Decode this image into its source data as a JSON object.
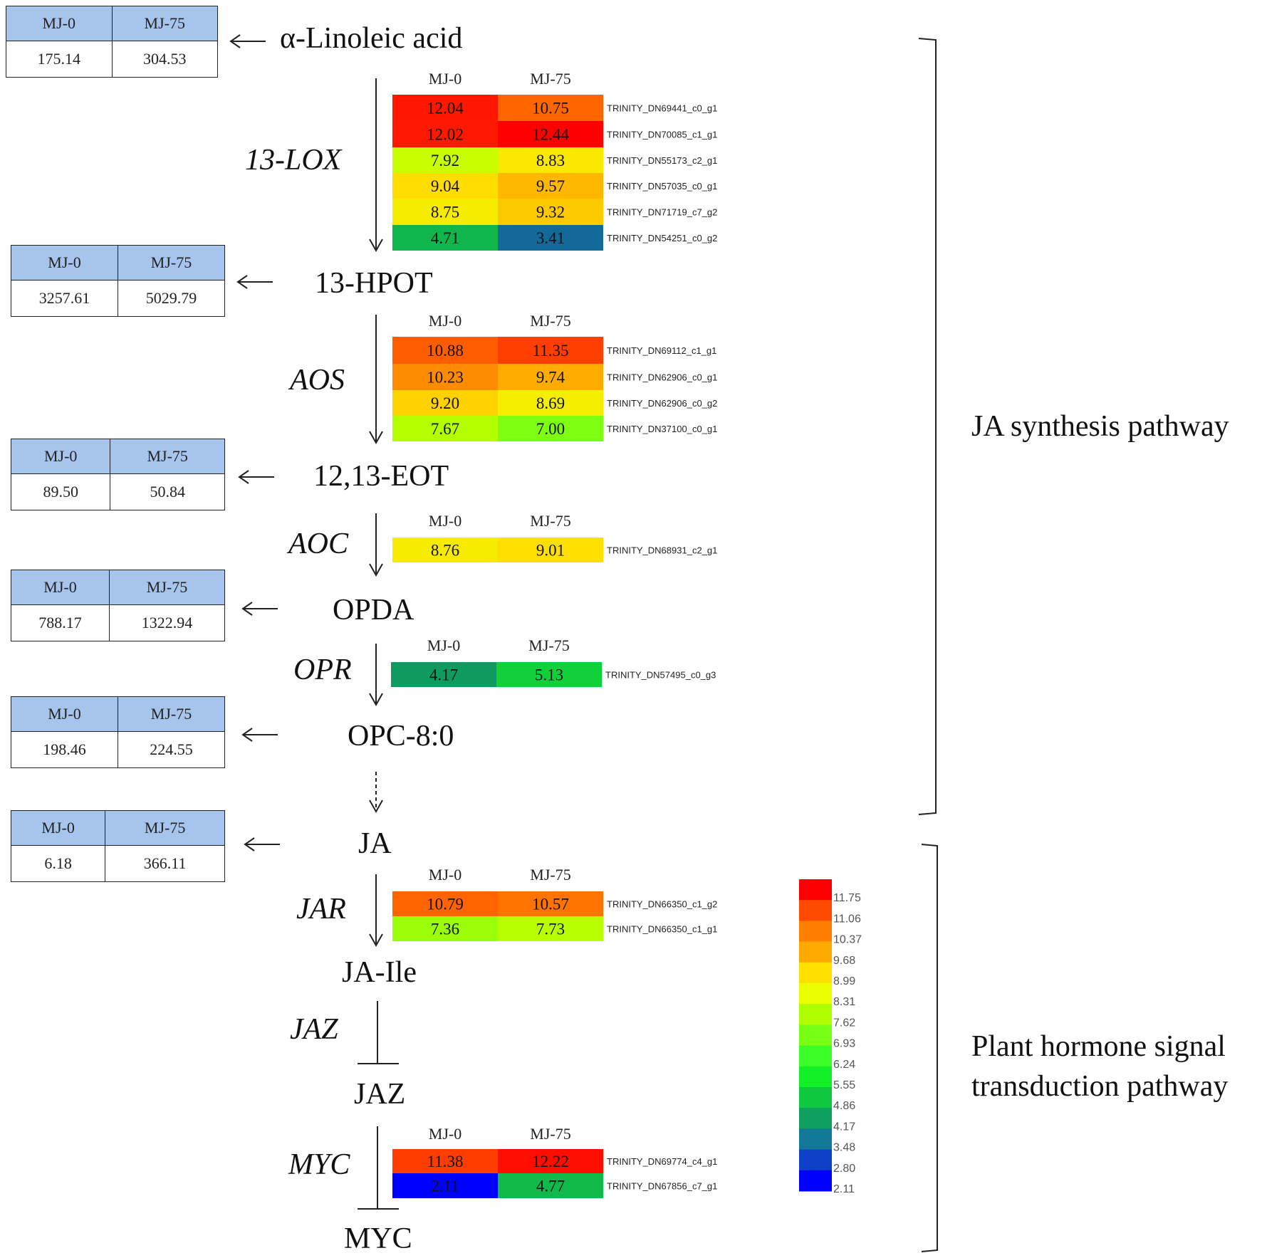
{
  "headers": {
    "mj0": "MJ-0",
    "mj75": "MJ-75"
  },
  "metabolites": {
    "linoleic": {
      "name": "α-Linoleic acid",
      "mj0": "175.14",
      "mj75": "304.53"
    },
    "hpot": {
      "name": "13-HPOT",
      "mj0": "3257.61",
      "mj75": "5029.79"
    },
    "eot": {
      "name": "12,13-EOT",
      "mj0": "89.50",
      "mj75": "50.84"
    },
    "opda": {
      "name": "OPDA",
      "mj0": "788.17",
      "mj75": "1322.94"
    },
    "opc": {
      "name": "OPC-8:0",
      "mj0": "198.46",
      "mj75": "224.55"
    },
    "ja": {
      "name": "JA",
      "mj0": "6.18",
      "mj75": "366.11"
    }
  },
  "compounds": {
    "jaile": "JA-Ile",
    "jaz": "JAZ",
    "myc": "MYC"
  },
  "enzymes": {
    "lox": "13-LOX",
    "aos": "AOS",
    "aoc": "AOC",
    "opr": "OPR",
    "jar": "JAR",
    "jaz": "JAZ",
    "myc": "MYC"
  },
  "heatmaps": {
    "lox": [
      {
        "mj0": 12.04,
        "mj75": 10.75,
        "gene": "TRINITY_DN69441_c0_g1"
      },
      {
        "mj0": 12.02,
        "mj75": 12.44,
        "gene": "TRINITY_DN70085_c1_g1"
      },
      {
        "mj0": 7.92,
        "mj75": 8.83,
        "gene": "TRINITY_DN55173_c2_g1"
      },
      {
        "mj0": 9.04,
        "mj75": 9.57,
        "gene": "TRINITY_DN57035_c0_g1"
      },
      {
        "mj0": 8.75,
        "mj75": 9.32,
        "gene": "TRINITY_DN71719_c7_g2"
      },
      {
        "mj0": 4.71,
        "mj75": 3.41,
        "gene": "TRINITY_DN54251_c0_g2"
      }
    ],
    "aos": [
      {
        "mj0": 10.88,
        "mj75": 11.35,
        "gene": "TRINITY_DN69112_c1_g1"
      },
      {
        "mj0": 10.23,
        "mj75": 9.74,
        "gene": "TRINITY_DN62906_c0_g1"
      },
      {
        "mj0": 9.2,
        "mj75": 8.69,
        "gene": "TRINITY_DN62906_c0_g2"
      },
      {
        "mj0": 7.67,
        "mj75": 7.0,
        "gene": "TRINITY_DN37100_c0_g1"
      }
    ],
    "aoc": [
      {
        "mj0": 8.76,
        "mj75": 9.01,
        "gene": "TRINITY_DN68931_c2_g1"
      }
    ],
    "opr": [
      {
        "mj0": 4.17,
        "mj75": 5.13,
        "gene": "TRINITY_DN57495_c0_g3"
      }
    ],
    "jar": [
      {
        "mj0": 10.79,
        "mj75": 10.57,
        "gene": "TRINITY_DN66350_c1_g2"
      },
      {
        "mj0": 7.36,
        "mj75": 7.73,
        "gene": "TRINITY_DN66350_c1_g1"
      }
    ],
    "myc": [
      {
        "mj0": 11.38,
        "mj75": 12.22,
        "gene": "TRINITY_DN69774_c4_g1"
      },
      {
        "mj0": 2.11,
        "mj75": 4.77,
        "gene": "TRINITY_DN67856_c7_g1"
      }
    ]
  },
  "legend": {
    "ticks": [
      "11.75",
      "11.06",
      "10.37",
      "9.68",
      "8.99",
      "8.31",
      "7.62",
      "6.93",
      "6.24",
      "5.55",
      "4.86",
      "4.17",
      "3.48",
      "2.80",
      "2.11"
    ],
    "colors": [
      "#ff0000",
      "#ff4a00",
      "#ff7f00",
      "#ffaa00",
      "#ffe000",
      "#e8ff00",
      "#b0ff00",
      "#78ff14",
      "#3cff28",
      "#14f028",
      "#10c840",
      "#0fa060",
      "#127898",
      "#1040c8",
      "#0000ff"
    ]
  },
  "sections": {
    "ja_synthesis": "JA synthesis pathway",
    "signal_line1": "Plant hormone signal",
    "signal_line2": "transduction pathway"
  }
}
